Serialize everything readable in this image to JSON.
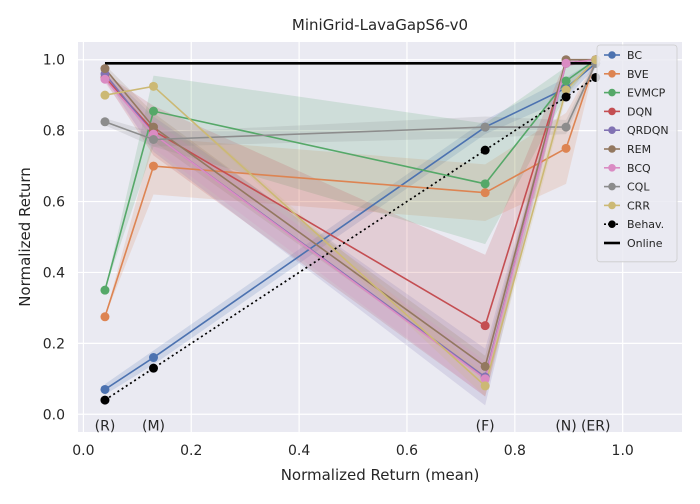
{
  "chart_data": {
    "type": "line",
    "title": "MiniGrid-LavaGapS6-v0",
    "xlabel": "Normalized Return (mean)",
    "ylabel": "Normalized Return",
    "xlim": [
      -0.01,
      1.11
    ],
    "ylim": [
      -0.05,
      1.05
    ],
    "xticks": [
      0.0,
      0.2,
      0.4,
      0.6,
      0.8,
      1.0
    ],
    "xtick_labels": [
      "0.0",
      "0.2",
      "0.4",
      "0.6",
      "0.8",
      "1.0"
    ],
    "yticks": [
      0.0,
      0.2,
      0.4,
      0.6,
      0.8,
      1.0
    ],
    "ytick_labels": [
      "0.0",
      "0.2",
      "0.4",
      "0.6",
      "0.8",
      "1.0"
    ],
    "grid": true,
    "legend_position": "top-right",
    "x": [
      0.04,
      0.13,
      0.745,
      0.895,
      0.95
    ],
    "dataset_labels": [
      {
        "x": 0.04,
        "text": "(R)"
      },
      {
        "x": 0.13,
        "text": "(M)"
      },
      {
        "x": 0.745,
        "text": "(F)"
      },
      {
        "x": 0.895,
        "text": "(N)"
      },
      {
        "x": 0.95,
        "text": "(ER)"
      }
    ],
    "series": [
      {
        "name": "BC",
        "color": "#4c72b0",
        "values": [
          0.07,
          0.16,
          0.81,
          0.92,
          0.99
        ],
        "band": [
          0.015,
          0.02,
          0.02,
          0.03,
          0.01
        ]
      },
      {
        "name": "BVE",
        "color": "#dd8452",
        "values": [
          0.275,
          0.7,
          0.625,
          0.75,
          1.0
        ],
        "band": [
          0.0,
          0.08,
          0.08,
          0.1,
          0.0
        ]
      },
      {
        "name": "EVMCP",
        "color": "#55a868",
        "values": [
          0.35,
          0.855,
          0.65,
          0.94,
          1.0
        ],
        "band": [
          0.0,
          0.1,
          0.17,
          0.04,
          0.0
        ]
      },
      {
        "name": "DQN",
        "color": "#c44e52",
        "values": [
          0.95,
          0.8,
          0.25,
          0.99,
          1.0
        ],
        "band": [
          0.01,
          0.07,
          0.2,
          0.01,
          0.0
        ]
      },
      {
        "name": "QRDQN",
        "color": "#8172b3",
        "values": [
          0.96,
          0.79,
          0.105,
          0.99,
          1.0
        ],
        "band": [
          0.01,
          0.05,
          0.08,
          0.01,
          0.0
        ]
      },
      {
        "name": "REM",
        "color": "#937860",
        "values": [
          0.975,
          0.81,
          0.135,
          1.0,
          1.0
        ],
        "band": [
          0.01,
          0.04,
          0.03,
          0.0,
          0.0
        ]
      },
      {
        "name": "BCQ",
        "color": "#da8bc3",
        "values": [
          0.945,
          0.79,
          0.1,
          0.99,
          1.0
        ],
        "band": [
          0.01,
          0.04,
          0.05,
          0.01,
          0.0
        ]
      },
      {
        "name": "CQL",
        "color": "#8c8c8c",
        "values": [
          0.825,
          0.775,
          0.81,
          0.81,
          0.99
        ],
        "band": [
          0.01,
          0.02,
          0.03,
          0.02,
          0.01
        ]
      },
      {
        "name": "CRR",
        "color": "#ccb974",
        "values": [
          0.9,
          0.925,
          0.08,
          0.915,
          1.0
        ],
        "band": [
          0.0,
          0.0,
          0.03,
          0.02,
          0.0
        ]
      },
      {
        "name": "Behav.",
        "color": "#000000",
        "style": "dotted",
        "values": [
          0.04,
          0.13,
          0.745,
          0.895,
          0.95
        ]
      },
      {
        "name": "Online",
        "color": "#000000",
        "style": "solid-thick",
        "x": [
          0.04,
          0.95
        ],
        "values": [
          0.99,
          0.99
        ]
      }
    ]
  }
}
